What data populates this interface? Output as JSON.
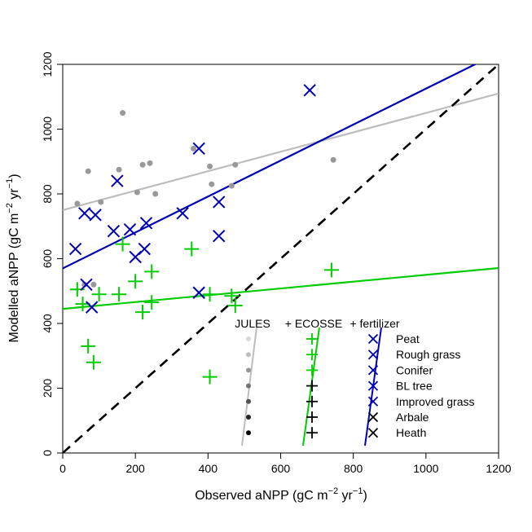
{
  "chart_data": {
    "type": "scatter",
    "xlabel": {
      "main": "Observed aNPP (gC m",
      "sup1": "−2",
      "mid": " yr",
      "sup2": "−1",
      "end": ")"
    },
    "ylabel": {
      "main": "Modelled aNPP (gC m",
      "sup1": "−2",
      "mid": " yr",
      "sup2": "−1",
      "end": ")"
    },
    "xlim": [
      0,
      1200
    ],
    "ylim": [
      0,
      1200
    ],
    "x_ticks": [
      "0",
      "200",
      "400",
      "600",
      "800",
      "1000",
      "1200"
    ],
    "y_ticks": [
      "0",
      "200",
      "400",
      "600",
      "800",
      "1000",
      "1200"
    ],
    "grid": false,
    "colors": {
      "jules": "#bdbdbd",
      "ecosse": "#00cc00",
      "fertilizer": "#0000b4",
      "one_to_one": "#000000",
      "legend_sym": "#000000"
    },
    "series": [
      {
        "name": "JULES",
        "marker": "dot",
        "points": [
          [
            40,
            770
          ],
          [
            70,
            870
          ],
          [
            60,
            520
          ],
          [
            85,
            520
          ],
          [
            105,
            775
          ],
          [
            155,
            875
          ],
          [
            165,
            1050
          ],
          [
            205,
            805
          ],
          [
            220,
            890
          ],
          [
            240,
            895
          ],
          [
            255,
            800
          ],
          [
            360,
            940
          ],
          [
            405,
            885
          ],
          [
            410,
            830
          ],
          [
            465,
            825
          ],
          [
            475,
            890
          ],
          [
            745,
            905
          ]
        ],
        "regression": {
          "intercept": 750,
          "slope": 0.3
        }
      },
      {
        "name": "ECOSSE",
        "marker": "plus",
        "points": [
          [
            40,
            505
          ],
          [
            55,
            460
          ],
          [
            70,
            330
          ],
          [
            85,
            280
          ],
          [
            100,
            490
          ],
          [
            155,
            490
          ],
          [
            165,
            645
          ],
          [
            200,
            530
          ],
          [
            220,
            435
          ],
          [
            245,
            465
          ],
          [
            245,
            560
          ],
          [
            355,
            630
          ],
          [
            405,
            235
          ],
          [
            405,
            490
          ],
          [
            465,
            485
          ],
          [
            475,
            455
          ],
          [
            740,
            565
          ]
        ],
        "regression": {
          "intercept": 445,
          "slope": 0.105
        }
      },
      {
        "name": "+ fertilizer",
        "marker": "cross",
        "points": [
          [
            35,
            630
          ],
          [
            60,
            740
          ],
          [
            65,
            520
          ],
          [
            80,
            450
          ],
          [
            90,
            735
          ],
          [
            140,
            685
          ],
          [
            150,
            840
          ],
          [
            185,
            690
          ],
          [
            200,
            605
          ],
          [
            225,
            630
          ],
          [
            230,
            710
          ],
          [
            330,
            740
          ],
          [
            375,
            940
          ],
          [
            375,
            495
          ],
          [
            430,
            670
          ],
          [
            430,
            775
          ],
          [
            680,
            1120
          ]
        ],
        "regression": {
          "intercept": 570,
          "slope": 0.555
        }
      }
    ],
    "reference_line": {
      "name": "1:1",
      "style": "dashed"
    },
    "legend": {
      "position": "bottom-right",
      "headers": [
        "JULES",
        "+ ECOSSE",
        "+ fertilizer"
      ],
      "items": [
        "Peat",
        "Rough grass",
        "Conifer",
        "BL tree",
        "Improved grass",
        "Arbale",
        "Heath"
      ],
      "shades": [
        "#d9d9d9",
        "#bdbdbd",
        "#969696",
        "#737373",
        "#525252",
        "#252525",
        "#000000"
      ]
    }
  }
}
